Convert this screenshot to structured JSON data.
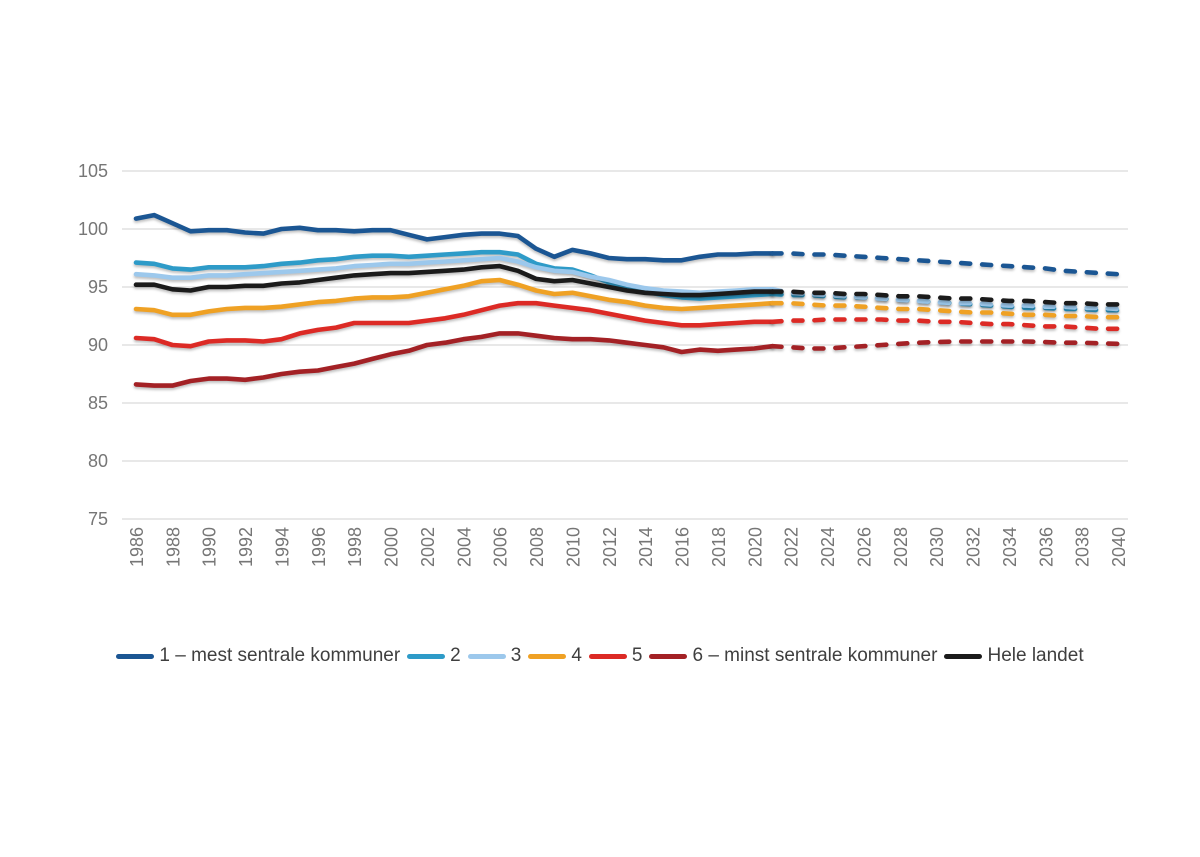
{
  "page": {
    "background": "#FFFFFF"
  },
  "chart_data": {
    "type": "line",
    "title": "",
    "xlabel": "",
    "ylabel": "",
    "ylim": [
      75,
      105
    ],
    "y_tick_step": 5,
    "y_tick_labels": [
      "105",
      "100",
      "95",
      "90",
      "85",
      "80",
      "75"
    ],
    "x_tick_labels": [
      "1986",
      "1988",
      "1990",
      "1992",
      "1994",
      "1996",
      "1998",
      "2000",
      "2002",
      "2004",
      "2006",
      "2008",
      "2010",
      "2012",
      "2014",
      "2016",
      "2018",
      "2020",
      "2022",
      "2024",
      "2026",
      "2028",
      "2030",
      "2032",
      "2034",
      "2036",
      "2038",
      "2040"
    ],
    "x": [
      1986,
      1987,
      1988,
      1989,
      1990,
      1991,
      1992,
      1993,
      1994,
      1995,
      1996,
      1997,
      1998,
      1999,
      2000,
      2001,
      2002,
      2003,
      2004,
      2005,
      2006,
      2007,
      2008,
      2009,
      2010,
      2011,
      2012,
      2013,
      2014,
      2015,
      2016,
      2017,
      2018,
      2019,
      2020,
      2021,
      2022,
      2023,
      2024,
      2025,
      2026,
      2027,
      2028,
      2029,
      2030,
      2031,
      2032,
      2033,
      2034,
      2035,
      2036,
      2037,
      2038,
      2039,
      2040
    ],
    "grid": "horizontal",
    "gridline_color": "#D9D9D9",
    "axis_text_color": "#767676",
    "legend_text_color": "#3F3F3F",
    "legend_position": "bottom",
    "projection_start_year": 2022,
    "projection_from_index": 35,
    "projection_style": "dashed",
    "series": [
      {
        "name": "1 – mest sentrale kommuner",
        "color": "#1B5693",
        "values": [
          100.9,
          101.2,
          100.5,
          99.8,
          99.9,
          99.9,
          99.7,
          99.6,
          100.0,
          100.1,
          99.9,
          99.9,
          99.8,
          99.9,
          99.9,
          99.5,
          99.1,
          99.3,
          99.5,
          99.6,
          99.6,
          99.4,
          98.3,
          97.6,
          98.2,
          97.9,
          97.5,
          97.4,
          97.4,
          97.3,
          97.3,
          97.6,
          97.8,
          97.8,
          97.9,
          97.9,
          97.9,
          97.8,
          97.8,
          97.7,
          97.6,
          97.5,
          97.4,
          97.3,
          97.2,
          97.1,
          97.0,
          96.9,
          96.8,
          96.7,
          96.6,
          96.4,
          96.3,
          96.2,
          96.1
        ]
      },
      {
        "name": "2",
        "color": "#2E9BC8",
        "values": [
          97.1,
          97.0,
          96.6,
          96.5,
          96.7,
          96.7,
          96.7,
          96.8,
          97.0,
          97.1,
          97.3,
          97.4,
          97.6,
          97.7,
          97.7,
          97.6,
          97.7,
          97.8,
          97.9,
          98.0,
          98.0,
          97.8,
          97.0,
          96.6,
          96.5,
          96.0,
          95.4,
          94.9,
          94.6,
          94.3,
          94.1,
          94.0,
          94.1,
          94.2,
          94.3,
          94.4,
          94.3,
          94.3,
          94.2,
          94.1,
          94.1,
          94.0,
          93.9,
          93.8,
          93.7,
          93.6,
          93.5,
          93.4,
          93.3,
          93.2,
          93.2,
          93.1,
          93.1,
          93.0,
          93.0
        ]
      },
      {
        "name": "3",
        "color": "#9CC8EC",
        "values": [
          96.1,
          96.0,
          95.8,
          95.8,
          96.0,
          96.0,
          96.1,
          96.2,
          96.3,
          96.4,
          96.5,
          96.6,
          96.8,
          96.9,
          97.0,
          97.0,
          97.1,
          97.2,
          97.3,
          97.4,
          97.5,
          97.2,
          96.7,
          96.4,
          96.3,
          95.9,
          95.6,
          95.2,
          94.9,
          94.7,
          94.6,
          94.5,
          94.6,
          94.7,
          94.8,
          94.8,
          94.5,
          94.4,
          94.3,
          94.2,
          94.1,
          94.0,
          93.9,
          93.8,
          93.7,
          93.6,
          93.6,
          93.5,
          93.4,
          93.4,
          93.3,
          93.3,
          93.2,
          93.2,
          93.1
        ]
      },
      {
        "name": "4",
        "color": "#EFA124",
        "values": [
          93.1,
          93.0,
          92.6,
          92.6,
          92.9,
          93.1,
          93.2,
          93.2,
          93.3,
          93.5,
          93.7,
          93.8,
          94.0,
          94.1,
          94.1,
          94.2,
          94.5,
          94.8,
          95.1,
          95.5,
          95.6,
          95.2,
          94.7,
          94.4,
          94.5,
          94.2,
          93.9,
          93.7,
          93.4,
          93.2,
          93.1,
          93.2,
          93.3,
          93.4,
          93.5,
          93.6,
          93.6,
          93.5,
          93.4,
          93.4,
          93.3,
          93.2,
          93.1,
          93.1,
          93.0,
          92.9,
          92.8,
          92.8,
          92.7,
          92.6,
          92.6,
          92.5,
          92.5,
          92.4,
          92.4
        ]
      },
      {
        "name": "5",
        "color": "#DC2A25",
        "values": [
          90.6,
          90.5,
          90.0,
          89.9,
          90.3,
          90.4,
          90.4,
          90.3,
          90.5,
          91.0,
          91.3,
          91.5,
          91.9,
          91.9,
          91.9,
          91.9,
          92.1,
          92.3,
          92.6,
          93.0,
          93.4,
          93.6,
          93.6,
          93.4,
          93.2,
          93.0,
          92.7,
          92.4,
          92.1,
          91.9,
          91.7,
          91.7,
          91.8,
          91.9,
          92.0,
          92.0,
          92.1,
          92.1,
          92.2,
          92.2,
          92.2,
          92.2,
          92.1,
          92.1,
          92.0,
          92.0,
          91.9,
          91.8,
          91.8,
          91.7,
          91.6,
          91.6,
          91.5,
          91.4,
          91.4
        ]
      },
      {
        "name": "6 – minst sentrale kommuner",
        "color": "#A32125",
        "values": [
          86.6,
          86.5,
          86.5,
          86.9,
          87.1,
          87.1,
          87.0,
          87.2,
          87.5,
          87.7,
          87.8,
          88.1,
          88.4,
          88.8,
          89.2,
          89.5,
          90.0,
          90.2,
          90.5,
          90.7,
          91.0,
          91.0,
          90.8,
          90.6,
          90.5,
          90.5,
          90.4,
          90.2,
          90.0,
          89.8,
          89.4,
          89.6,
          89.5,
          89.6,
          89.7,
          89.9,
          89.8,
          89.7,
          89.7,
          89.8,
          89.9,
          90.0,
          90.1,
          90.2,
          90.25,
          90.3,
          90.3,
          90.3,
          90.3,
          90.3,
          90.25,
          90.2,
          90.2,
          90.15,
          90.1
        ]
      },
      {
        "name": "Hele landet",
        "color": "#1B1B1B",
        "values": [
          95.2,
          95.2,
          94.8,
          94.7,
          95.0,
          95.0,
          95.1,
          95.1,
          95.3,
          95.4,
          95.6,
          95.8,
          96.0,
          96.1,
          96.2,
          96.2,
          96.3,
          96.4,
          96.5,
          96.7,
          96.8,
          96.4,
          95.7,
          95.5,
          95.6,
          95.3,
          95.0,
          94.7,
          94.5,
          94.4,
          94.3,
          94.3,
          94.4,
          94.5,
          94.6,
          94.6,
          94.6,
          94.5,
          94.5,
          94.4,
          94.4,
          94.3,
          94.2,
          94.2,
          94.1,
          94.0,
          94.0,
          93.9,
          93.8,
          93.8,
          93.7,
          93.6,
          93.6,
          93.5,
          93.5
        ]
      }
    ]
  }
}
